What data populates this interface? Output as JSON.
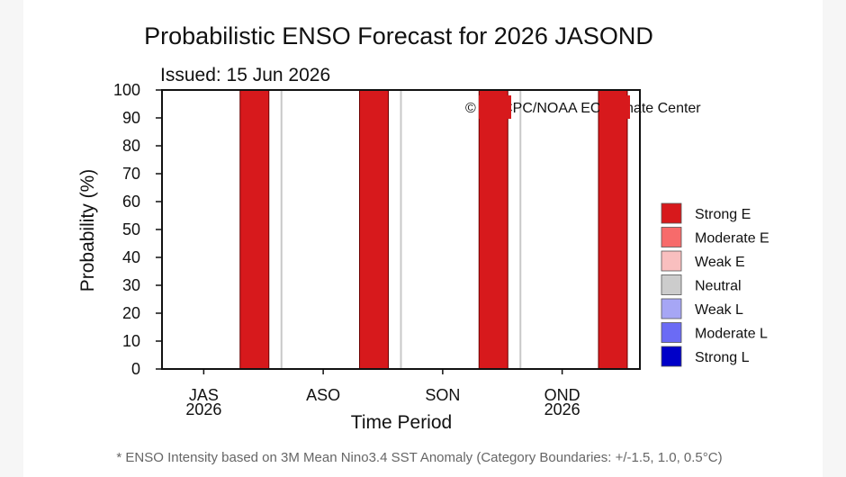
{
  "chart_data": {
    "type": "bar",
    "title": "Probabilistic ENSO Forecast for 2026 JASOND",
    "issued": "Issued: 15 Jun 2026",
    "xlabel": "Time Period",
    "ylabel": "Probability (%)",
    "ylim": [
      0,
      100
    ],
    "yticks": [
      0,
      10,
      20,
      30,
      40,
      50,
      60,
      70,
      80,
      90,
      100
    ],
    "grid": false,
    "legend_position": "right",
    "categories": [
      {
        "label": "JAS",
        "sublabel": "2026"
      },
      {
        "label": "ASO",
        "sublabel": ""
      },
      {
        "label": "SON",
        "sublabel": ""
      },
      {
        "label": "OND",
        "sublabel": "2026"
      }
    ],
    "series": [
      {
        "name": "Strong E",
        "color": "#d7191c",
        "values": [
          100,
          100,
          100,
          100
        ]
      },
      {
        "name": "Moderate E",
        "color": "#f76b6b",
        "values": [
          0,
          0,
          0,
          0
        ]
      },
      {
        "name": "Weak E",
        "color": "#f9bfbf",
        "values": [
          0,
          0,
          0,
          0
        ]
      },
      {
        "name": "Neutral",
        "color": "#cccccc",
        "values": [
          0,
          0,
          0,
          0
        ]
      },
      {
        "name": "Weak L",
        "color": "#a6a6f5",
        "values": [
          0,
          0,
          0,
          0
        ]
      },
      {
        "name": "Moderate L",
        "color": "#6b6bf5",
        "values": [
          0,
          0,
          0,
          0
        ]
      },
      {
        "name": "Strong L",
        "color": "#0000c8",
        "values": [
          0,
          0,
          0,
          0
        ]
      }
    ],
    "watermark": "© IRI/CPC/NOAA EC Climate Center",
    "footnote": "* ENSO Intensity based on 3M Mean Nino3.4 SST Anomaly (Category Boundaries: +/-1.5, 1.0, 0.5°C)"
  }
}
